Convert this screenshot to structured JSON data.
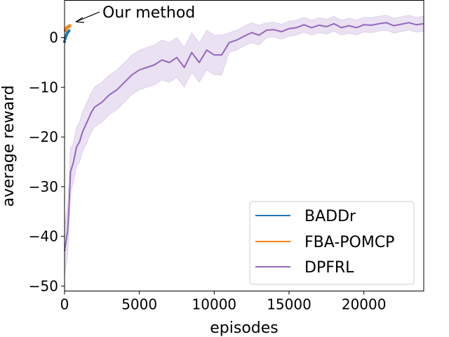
{
  "chart_data": {
    "type": "line",
    "title": "",
    "xlabel": "episodes",
    "ylabel": "average reward",
    "xlim": [
      0,
      24000
    ],
    "ylim": [
      -51,
      7.5
    ],
    "xticks": [
      0,
      5000,
      10000,
      15000,
      20000
    ],
    "yticks": [
      0,
      -10,
      -20,
      -30,
      -40,
      -50
    ],
    "xtick_labels": [
      "0",
      "5000",
      "10000",
      "15000",
      "20000"
    ],
    "ytick_labels": [
      "0",
      "−10",
      "−20",
      "−30",
      "−40",
      "−50"
    ],
    "legend_position": "bottom-right",
    "annotation": {
      "text": "Our method",
      "x": 300,
      "y": 2.5
    },
    "series": [
      {
        "name": "BADDr",
        "color": "#1f77b4",
        "x": [
          0,
          50,
          100,
          150,
          200,
          250,
          300
        ],
        "y": [
          -0.8,
          -0.2,
          0.3,
          0.7,
          1.0,
          1.2,
          1.4
        ]
      },
      {
        "name": "FBA-POMCP",
        "color": "#ff7f0e",
        "x": [
          50,
          100,
          150,
          200,
          250,
          300,
          350
        ],
        "y": [
          1.4,
          1.8,
          2.0,
          2.1,
          2.2,
          2.3,
          2.4
        ]
      },
      {
        "name": "DPFRL",
        "color": "#9467bd",
        "x": [
          0,
          100,
          200,
          300,
          400,
          500,
          600,
          800,
          1000,
          1200,
          1500,
          1800,
          2000,
          2500,
          3000,
          3500,
          4000,
          4500,
          5000,
          5500,
          6000,
          6500,
          7000,
          7500,
          8000,
          8500,
          9000,
          9500,
          10000,
          10500,
          11000,
          11500,
          12000,
          12500,
          13000,
          13500,
          14000,
          14500,
          15000,
          15500,
          16000,
          16500,
          17000,
          17500,
          18000,
          18500,
          19000,
          19500,
          20000,
          20500,
          21000,
          21500,
          22000,
          22500,
          23000,
          23500,
          24000
        ],
        "y": [
          -43,
          -41,
          -39,
          -34,
          -27,
          -26,
          -25,
          -22,
          -21,
          -19,
          -17,
          -15,
          -14,
          -13,
          -11.5,
          -10.5,
          -9,
          -7.5,
          -6.5,
          -6,
          -5.5,
          -4.5,
          -5,
          -4,
          -6,
          -3,
          -5,
          -2.5,
          -3.5,
          -3.5,
          -1,
          -0.5,
          0.3,
          1,
          0.5,
          1.5,
          1.6,
          1.2,
          1.8,
          2.0,
          2.6,
          2.0,
          2.5,
          2.2,
          2.8,
          2.0,
          2.4,
          2.0,
          2.6,
          2.5,
          2.8,
          3.0,
          2.4,
          2.7,
          3.0,
          2.6,
          2.8
        ],
        "band": [
          5,
          5,
          5,
          5,
          5,
          4,
          4,
          4,
          4,
          4,
          4,
          4,
          4,
          4,
          4,
          4,
          4,
          4,
          4,
          4,
          4,
          4,
          4,
          4,
          4,
          4,
          4,
          4,
          4,
          4,
          2,
          2,
          2,
          2,
          2,
          1.5,
          1.5,
          1.5,
          1.5,
          1.5,
          1.5,
          1.5,
          1.5,
          1.5,
          1.5,
          1.5,
          1.5,
          1.5,
          1.5,
          1.5,
          1.5,
          1.5,
          1.5,
          1.5,
          1.5,
          1.5,
          1.5
        ]
      }
    ]
  }
}
